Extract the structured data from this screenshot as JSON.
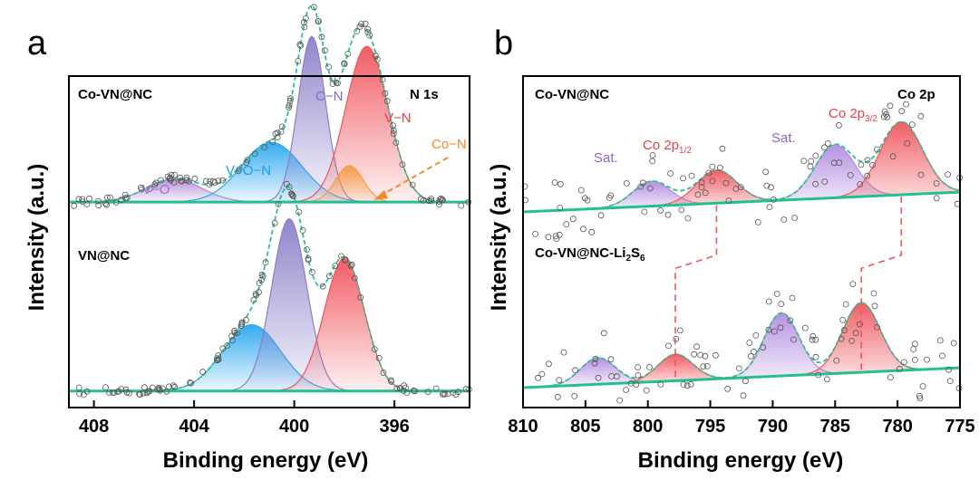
{
  "chart_data": [
    {
      "panel_label": "a",
      "type": "line",
      "xlabel": "Binding energy (eV)",
      "ylabel": "Intensity (a.u.)",
      "xlim": [
        409,
        393
      ],
      "x_reversed": true,
      "xticks": [
        408,
        404,
        400,
        396
      ],
      "yticks": "none",
      "spectra": [
        {
          "label": "Co-VN@NC",
          "core_level": "N 1s",
          "baseline": 0.62,
          "peaks": [
            {
              "name": "V−O",
              "center": 404.8,
              "height": 0.07,
              "width": 1.1,
              "color": "#b58ad8",
              "text_color": "#a36fd0"
            },
            {
              "name": "V−O−N",
              "center": 400.9,
              "height": 0.18,
              "width": 1.2,
              "color": "#2aa7f0",
              "text_color": "#1aa0ea"
            },
            {
              "name": "C−N",
              "center": 399.3,
              "height": 0.5,
              "width": 0.55,
              "color": "#8a7fc8",
              "text_color": "#7b6cc0"
            },
            {
              "name": "V−N",
              "center": 397.1,
              "height": 0.47,
              "width": 0.85,
              "color": "#f0555d",
              "text_color": "#ea3f4a"
            },
            {
              "name": "Co−N",
              "center": 397.8,
              "height": 0.11,
              "width": 0.55,
              "color": "#f59c43",
              "text_color": "#f28a2c"
            }
          ]
        },
        {
          "label": "VN@NC",
          "baseline": 0.05,
          "peaks": [
            {
              "name": "V−O−N",
              "center": 401.7,
              "height": 0.2,
              "width": 1.15,
              "color": "#2aa7f0"
            },
            {
              "name": "C−N",
              "center": 400.2,
              "height": 0.52,
              "width": 0.7,
              "color": "#8a7fc8"
            },
            {
              "name": "V−N",
              "center": 398.0,
              "height": 0.4,
              "width": 0.8,
              "color": "#f0555d"
            }
          ]
        }
      ]
    },
    {
      "panel_label": "b",
      "type": "line",
      "xlabel": "Binding energy (eV)",
      "ylabel": "Intensity (a.u.)",
      "xlim": [
        810,
        775
      ],
      "x_reversed": true,
      "xticks": [
        810,
        805,
        800,
        795,
        790,
        785,
        780,
        775
      ],
      "yticks": "none",
      "spectra": [
        {
          "label": "Co-VN@NC",
          "core_level": "Co 2p",
          "baseline_left": 0.59,
          "baseline_right": 0.65,
          "peaks": [
            {
              "name": "Sat.",
              "center": 799.7,
              "height": 0.075,
              "width": 1.5,
              "color": "#b38ce0"
            },
            {
              "name": "Co 2p1/2",
              "center": 794.5,
              "height": 0.1,
              "width": 1.6,
              "color": "#f0555d"
            },
            {
              "name": "Sat.",
              "center": 785.0,
              "height": 0.16,
              "width": 1.6,
              "color": "#b38ce0"
            },
            {
              "name": "Co 2p3/2",
              "center": 779.7,
              "height": 0.22,
              "width": 1.7,
              "color": "#f0555d"
            }
          ]
        },
        {
          "label": "Co-VN@NC-Li2S6",
          "baseline_left": 0.06,
          "baseline_right": 0.12,
          "peaks": [
            {
              "name": "Sat.",
              "center": 804.0,
              "height": 0.08,
              "width": 1.4,
              "color": "#b38ce0"
            },
            {
              "name": "Co 2p1/2",
              "center": 797.8,
              "height": 0.08,
              "width": 1.4,
              "color": "#f0555d"
            },
            {
              "name": "Sat.",
              "center": 789.3,
              "height": 0.19,
              "width": 1.4,
              "color": "#b38ce0"
            },
            {
              "name": "Co 2p3/2",
              "center": 782.9,
              "height": 0.21,
              "width": 1.5,
              "color": "#f0555d"
            }
          ]
        }
      ],
      "shift_markers": [
        {
          "from": 794.5,
          "to": 797.8
        },
        {
          "from": 779.7,
          "to": 782.9
        }
      ],
      "peak_labels": {
        "sat": "Sat.",
        "co_2p12_main": "Co 2p",
        "co_2p12_sub": "1/2",
        "co_2p32_main": "Co 2p",
        "co_2p32_sub": "3/2",
        "lower_label_main": "Co-VN@NC-Li",
        "lower_label_sub1": "2",
        "lower_label_mid": "S",
        "lower_label_sub2": "6"
      }
    }
  ],
  "colors": {
    "envelope_fit": "#2fbf8e",
    "baseline": "#21c08f",
    "data_points": "#555555",
    "shift_marker": "#f0555d",
    "axis": "#000000"
  }
}
